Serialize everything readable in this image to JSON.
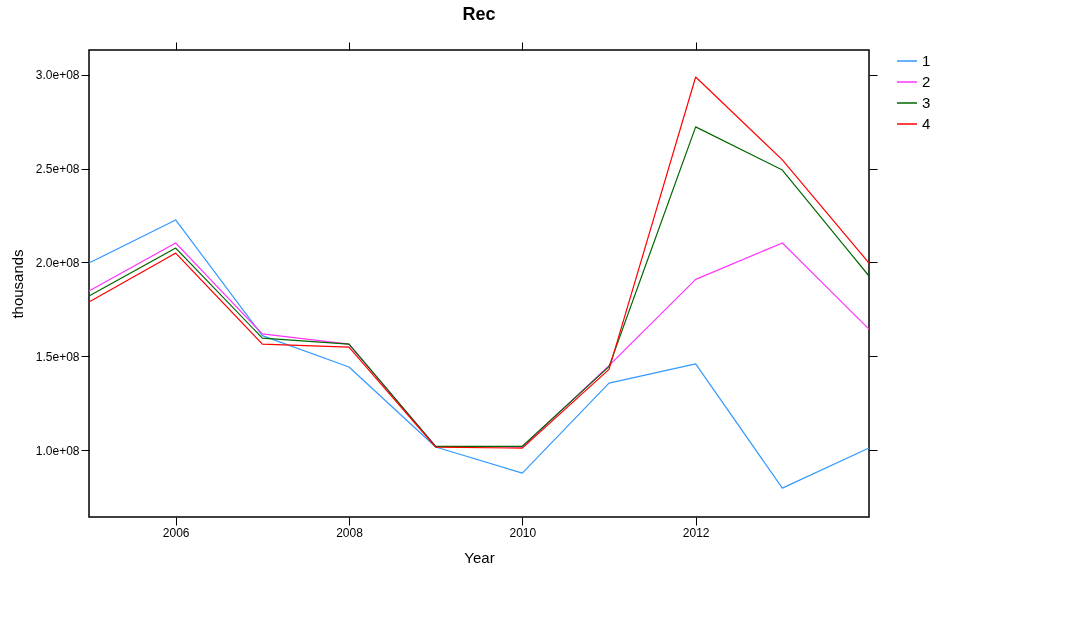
{
  "chart_data": {
    "type": "line",
    "title": "Rec",
    "xlabel": "Year",
    "ylabel": "thousands",
    "x": [
      2005,
      2006,
      2007,
      2008,
      2009,
      2010,
      2011,
      2012,
      2013,
      2014
    ],
    "series": [
      {
        "name": "1",
        "color": "#3399ff",
        "values": [
          199700000,
          222700000,
          161000000,
          144300000,
          101600000,
          87700000,
          135700000,
          145900000,
          79700000,
          101100000
        ]
      },
      {
        "name": "2",
        "color": "#ff33ff",
        "values": [
          184800000,
          210400000,
          161900000,
          156500000,
          102000000,
          101600000,
          145000000,
          191000000,
          210400000,
          164500000
        ]
      },
      {
        "name": "3",
        "color": "#006600",
        "values": [
          182100000,
          207700000,
          159700000,
          156500000,
          102000000,
          102000000,
          144500000,
          272300000,
          249300000,
          192800000
        ]
      },
      {
        "name": "4",
        "color": "#ff0000",
        "values": [
          178900000,
          205000000,
          156500000,
          154900000,
          101600000,
          101000000,
          143000000,
          298900000,
          254700000,
          199700000
        ]
      }
    ],
    "xlim": [
      2005,
      2014
    ],
    "xticks": [
      2006,
      2008,
      2010,
      2012
    ],
    "ylim": [
      64300000,
      313300000
    ],
    "yticks": [
      {
        "value": 100000000,
        "label": "1.0e+08"
      },
      {
        "value": 150000000,
        "label": "1.5e+08"
      },
      {
        "value": 200000000,
        "label": "2.0e+08"
      },
      {
        "value": 250000000,
        "label": "2.5e+08"
      },
      {
        "value": 300000000,
        "label": "3.0e+08"
      }
    ],
    "legend": "right",
    "grid": false
  }
}
